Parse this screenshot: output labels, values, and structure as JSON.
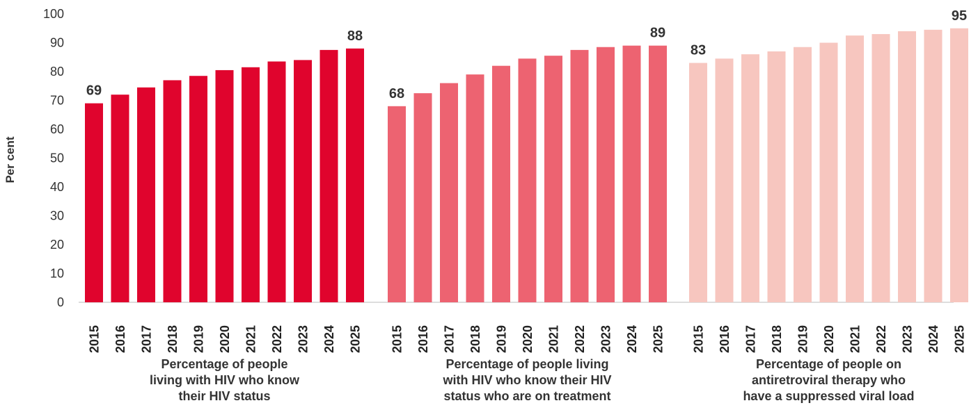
{
  "chart_data": {
    "type": "bar",
    "ylabel": "Per cent",
    "ylim": [
      0,
      100
    ],
    "yticks": [
      0,
      10,
      20,
      30,
      40,
      50,
      60,
      70,
      80,
      90,
      100
    ],
    "grid": false,
    "categories": [
      "2015",
      "2016",
      "2017",
      "2018",
      "2019",
      "2020",
      "2021",
      "2022",
      "2023",
      "2024",
      "2025"
    ],
    "groups": [
      {
        "label_lines": [
          "Percentage of people",
          "living with HIV who know",
          "their HIV status"
        ],
        "color": "#e0042d",
        "values": [
          69,
          72,
          74.5,
          77,
          78.5,
          80.5,
          81.5,
          83.5,
          84,
          87.5,
          88
        ],
        "data_labels": [
          {
            "year": "2015",
            "text": "69"
          },
          {
            "year": "2025",
            "text": "88"
          }
        ]
      },
      {
        "label_lines": [
          "Percentage of people living",
          "with HIV who know their HIV",
          "status who are on treatment"
        ],
        "color": "#ed6371",
        "values": [
          68,
          72.5,
          76,
          79,
          82,
          84.5,
          85.5,
          87.5,
          88.5,
          89,
          89
        ],
        "data_labels": [
          {
            "year": "2015",
            "text": "68"
          },
          {
            "year": "2025",
            "text": "89"
          }
        ]
      },
      {
        "label_lines": [
          "Percentage of people on",
          "antiretroviral therapy who",
          "have a suppressed viral load"
        ],
        "color": "#f7c6bf",
        "values": [
          83,
          84.5,
          86,
          87,
          88.5,
          90,
          92.5,
          93,
          94,
          94.5,
          95
        ],
        "data_labels": [
          {
            "year": "2015",
            "text": "83"
          },
          {
            "year": "2025",
            "text": "95"
          }
        ]
      }
    ]
  }
}
